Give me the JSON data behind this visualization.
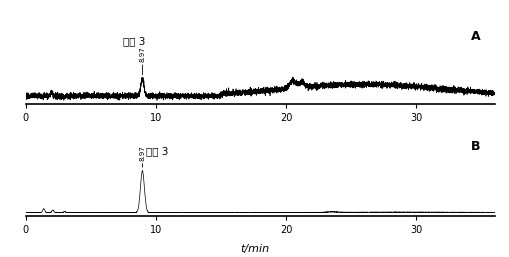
{
  "panel_A_label": "A",
  "panel_B_label": "B",
  "xlabel": "t/min",
  "impurity_label": "杂质 3",
  "peak_time_label": "8.97",
  "xlim": [
    0,
    36
  ],
  "xticks": [
    0,
    10,
    20,
    30
  ],
  "bg_color": "#ffffff",
  "line_color": "#000000",
  "peak_time": 8.97
}
